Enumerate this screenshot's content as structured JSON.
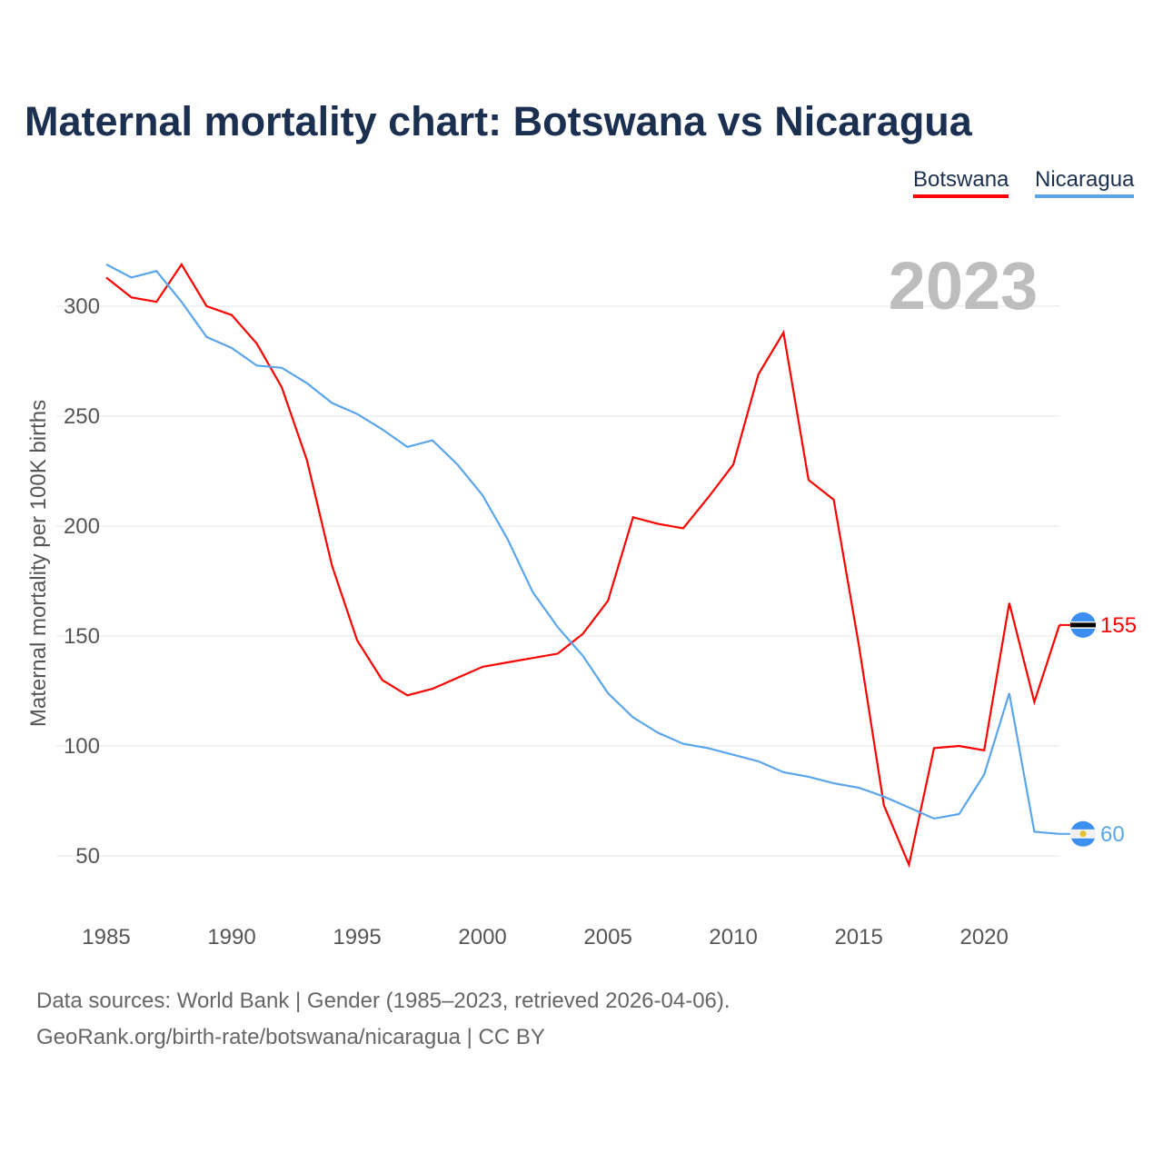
{
  "title": "Maternal mortality chart: Botswana vs Nicaragua",
  "legend": [
    "Botswana",
    "Nicaragua"
  ],
  "year_label": "2023",
  "sources": {
    "line1": "Data sources: World Bank | Gender (1985–2023, retrieved 2026-04-06).",
    "line2": "GeoRank.org/birth-rate/botswana/nicaragua | CC BY"
  },
  "chart_data": {
    "type": "line",
    "title": "Maternal mortality chart: Botswana vs Nicaragua",
    "xlabel": "",
    "ylabel": "Maternal mortality per 100K births",
    "xlim": [
      1985,
      2023
    ],
    "ylim": [
      30,
      330
    ],
    "xticks": [
      1985,
      1990,
      1995,
      2000,
      2005,
      2010,
      2015,
      2020
    ],
    "yticks": [
      50,
      100,
      150,
      200,
      250,
      300
    ],
    "grid": true,
    "legend_position": "top-right",
    "x": [
      1985,
      1986,
      1987,
      1988,
      1989,
      1990,
      1991,
      1992,
      1993,
      1994,
      1995,
      1996,
      1997,
      1998,
      1999,
      2000,
      2001,
      2002,
      2003,
      2004,
      2005,
      2006,
      2007,
      2008,
      2009,
      2010,
      2011,
      2012,
      2013,
      2014,
      2015,
      2016,
      2017,
      2018,
      2019,
      2020,
      2021,
      2022,
      2023
    ],
    "series": [
      {
        "name": "Botswana",
        "color": "#ff0000",
        "end_label": "155",
        "values": [
          313,
          304,
          302,
          319,
          300,
          296,
          283,
          263,
          230,
          182,
          148,
          130,
          123,
          126,
          131,
          136,
          138,
          140,
          142,
          151,
          166,
          204,
          201,
          199,
          213,
          228,
          269,
          288,
          221,
          212,
          146,
          73,
          46,
          99,
          100,
          98,
          165,
          120,
          155
        ]
      },
      {
        "name": "Nicaragua",
        "color": "#5aa5ec",
        "end_label": "60",
        "values": [
          319,
          313,
          316,
          302,
          286,
          281,
          273,
          272,
          265,
          256,
          251,
          244,
          236,
          239,
          228,
          214,
          194,
          170,
          154,
          141,
          124,
          113,
          106,
          101,
          99,
          96,
          93,
          88,
          86,
          83,
          81,
          77,
          72,
          67,
          69,
          87,
          124,
          61,
          60
        ]
      }
    ]
  }
}
